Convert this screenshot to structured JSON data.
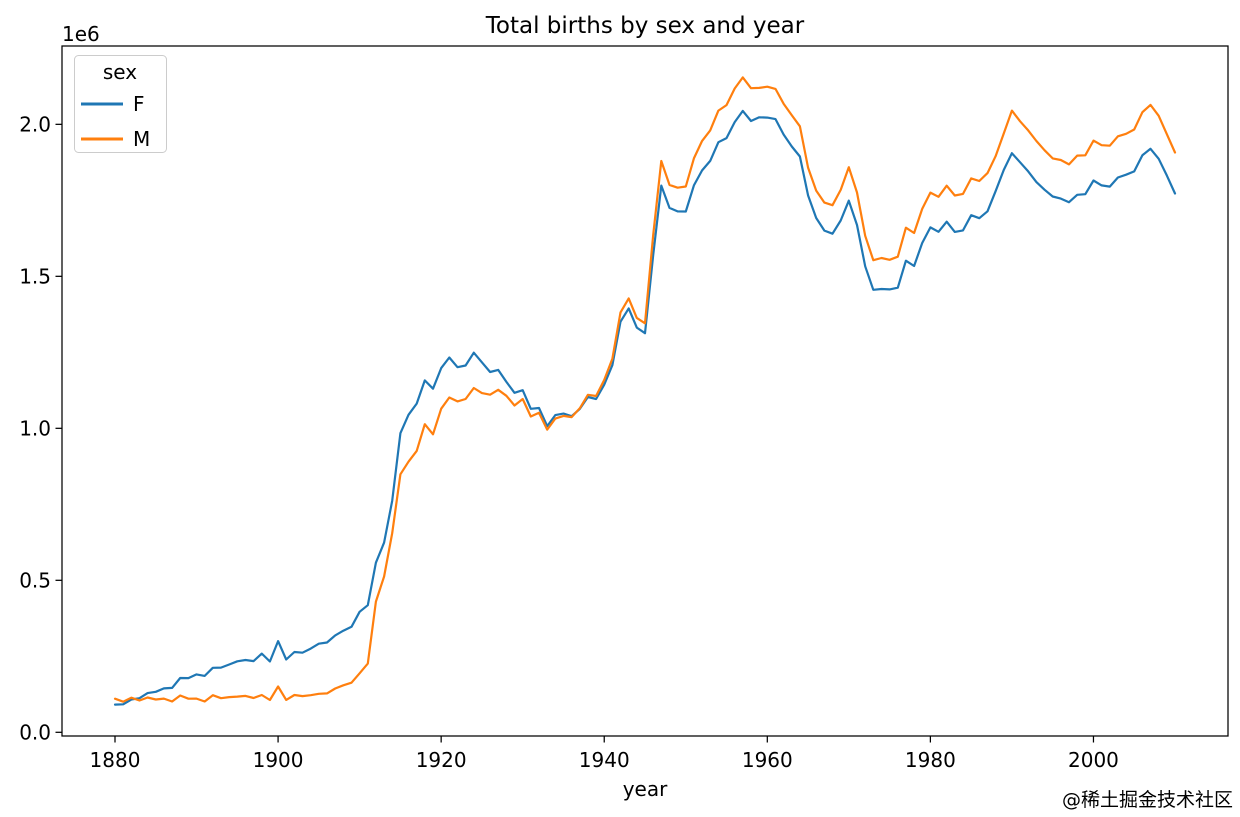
{
  "figure": {
    "background": "#ffffff"
  },
  "watermark": {
    "text": "@稀土掘金技术社区",
    "color": "#d8d5d2"
  },
  "axes": {
    "spine_color": "#000000",
    "tick_color": "#000000"
  },
  "chart_data": {
    "type": "line",
    "title": "Total births by sex and year",
    "xlabel": "year",
    "ylabel": "",
    "y_offset_label": "1e6",
    "grid": false,
    "legend": {
      "title": "sex",
      "position": "upper left"
    },
    "xlim": [
      1873.5,
      2016.5
    ],
    "ylim": [
      -12175,
      2257675
    ],
    "xticks": {
      "values": [
        1880,
        1900,
        1920,
        1940,
        1960,
        1980,
        2000
      ],
      "labels": [
        "1880",
        "1900",
        "1920",
        "1940",
        "1960",
        "1980",
        "2000"
      ]
    },
    "yticks": {
      "values": [
        0,
        500000,
        1000000,
        1500000,
        2000000
      ],
      "labels": [
        "0.0",
        "0.5",
        "1.0",
        "1.5",
        "2.0"
      ]
    },
    "x": [
      1880,
      1881,
      1882,
      1883,
      1884,
      1885,
      1886,
      1887,
      1888,
      1889,
      1890,
      1891,
      1892,
      1893,
      1894,
      1895,
      1896,
      1897,
      1898,
      1899,
      1900,
      1901,
      1902,
      1903,
      1904,
      1905,
      1906,
      1907,
      1908,
      1909,
      1910,
      1911,
      1912,
      1913,
      1914,
      1915,
      1916,
      1917,
      1918,
      1919,
      1920,
      1921,
      1922,
      1923,
      1924,
      1925,
      1926,
      1927,
      1928,
      1929,
      1930,
      1931,
      1932,
      1933,
      1934,
      1935,
      1936,
      1937,
      1938,
      1939,
      1940,
      1941,
      1942,
      1943,
      1944,
      1945,
      1946,
      1947,
      1948,
      1949,
      1950,
      1951,
      1952,
      1953,
      1954,
      1955,
      1956,
      1957,
      1958,
      1959,
      1960,
      1961,
      1962,
      1963,
      1964,
      1965,
      1966,
      1967,
      1968,
      1969,
      1970,
      1971,
      1972,
      1973,
      1974,
      1975,
      1976,
      1977,
      1978,
      1979,
      1980,
      1981,
      1982,
      1983,
      1984,
      1985,
      1986,
      1987,
      1988,
      1989,
      1990,
      1991,
      1992,
      1993,
      1994,
      1995,
      1996,
      1997,
      1998,
      1999,
      2000,
      2001,
      2002,
      2003,
      2004,
      2005,
      2006,
      2007,
      2008,
      2009,
      2010
    ],
    "series": [
      {
        "name": "F",
        "color": "#1f77b4",
        "values": [
          91000,
          92000,
          107800,
          112300,
          129000,
          133100,
          144500,
          146000,
          178600,
          178400,
          190400,
          185500,
          212300,
          212900,
          222900,
          233600,
          237900,
          234200,
          258800,
          233000,
          299900,
          239400,
          264100,
          262000,
          275400,
          291600,
          295300,
          318600,
          334300,
          347200,
          396500,
          418200,
          557900,
          624200,
          761400,
          983800,
          1044300,
          1081200,
          1157600,
          1130200,
          1198200,
          1232900,
          1200900,
          1206500,
          1248900,
          1217200,
          1185100,
          1192200,
          1152800,
          1116800,
          1125500,
          1064200,
          1066700,
          1007300,
          1043600,
          1048300,
          1040000,
          1063900,
          1103000,
          1096500,
          1143600,
          1208100,
          1350700,
          1394600,
          1331300,
          1313000,
          1570100,
          1798600,
          1725000,
          1713700,
          1713100,
          1799000,
          1848500,
          1879800,
          1941300,
          1954700,
          2007400,
          2044200,
          2010900,
          2023100,
          2022100,
          2017300,
          1966600,
          1927200,
          1894300,
          1765900,
          1691900,
          1650500,
          1640300,
          1683700,
          1748900,
          1668800,
          1533100,
          1455800,
          1458200,
          1457000,
          1462600,
          1551400,
          1534000,
          1609700,
          1660900,
          1646400,
          1679800,
          1646000,
          1651000,
          1701100,
          1691300,
          1714000,
          1780000,
          1850000,
          1905000,
          1875000,
          1845000,
          1810000,
          1785000,
          1762500,
          1755800,
          1743800,
          1768200,
          1770300,
          1815300,
          1799100,
          1795200,
          1825000,
          1834200,
          1845200,
          1898500,
          1919600,
          1886700,
          1831900,
          1772600
        ]
      },
      {
        "name": "M",
        "color": "#ff7f0e",
        "values": [
          110500,
          100800,
          113700,
          104600,
          114400,
          107800,
          110800,
          101400,
          120900,
          110600,
          111000,
          101200,
          122000,
          112300,
          115800,
          117400,
          119600,
          112800,
          122700,
          106200,
          150600,
          106500,
          122700,
          119200,
          122000,
          126800,
          128000,
          144000,
          154600,
          163000,
          194200,
          225900,
          429900,
          512500,
          654800,
          848600,
          890100,
          925700,
          1013500,
          980300,
          1064500,
          1101300,
          1088400,
          1096300,
          1132700,
          1115800,
          1110500,
          1126700,
          1107100,
          1074900,
          1096500,
          1038700,
          1051200,
          995900,
          1031800,
          1040900,
          1036900,
          1066000,
          1110400,
          1106200,
          1158800,
          1229200,
          1381300,
          1427400,
          1363200,
          1345400,
          1635800,
          1879500,
          1800800,
          1791600,
          1795400,
          1887900,
          1945400,
          1980000,
          2045200,
          2063300,
          2118000,
          2154500,
          2118800,
          2119900,
          2123900,
          2116600,
          2067700,
          2029600,
          1993400,
          1857000,
          1782100,
          1742500,
          1734100,
          1784400,
          1858900,
          1775600,
          1633300,
          1552900,
          1560400,
          1554300,
          1564700,
          1659800,
          1642400,
          1721700,
          1775400,
          1761500,
          1798000,
          1765900,
          1771100,
          1822200,
          1813700,
          1839700,
          1895000,
          1970000,
          2045000,
          2010000,
          1980000,
          1945000,
          1915000,
          1888000,
          1882500,
          1868200,
          1897000,
          1898100,
          1946400,
          1931500,
          1929600,
          1960500,
          1968800,
          1982900,
          2039800,
          2063800,
          2028100,
          1968000,
          1907400
        ]
      }
    ]
  }
}
